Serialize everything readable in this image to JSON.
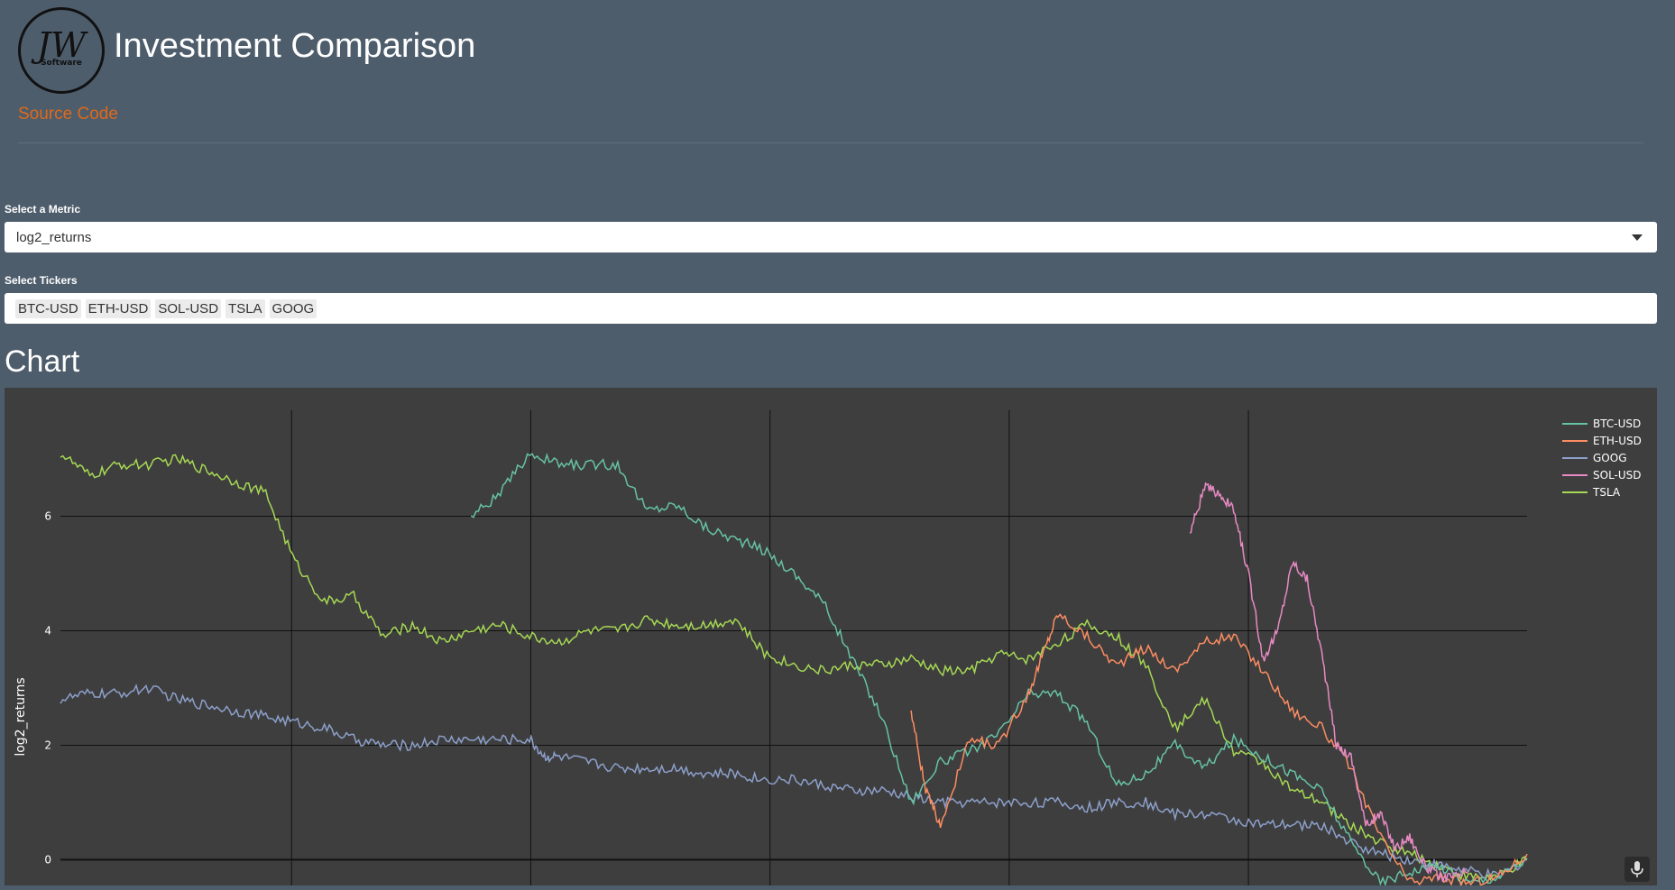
{
  "header": {
    "logo_mark": "JW",
    "logo_sub": "Software",
    "title": "Investment Comparison",
    "source_link": "Source Code"
  },
  "metric": {
    "label": "Select a Metric",
    "value": "log2_returns"
  },
  "tickers": {
    "label": "Select Tickers",
    "selected": [
      "BTC-USD",
      "ETH-USD",
      "SOL-USD",
      "TSLA",
      "GOOG"
    ]
  },
  "chart_heading": "Chart",
  "colors": {
    "page_bg": "#4e5d6c",
    "plot_bg": "#3e3e3e",
    "accent": "#df691a"
  },
  "icons": [
    "microphone-icon",
    "chevron-down-icon"
  ],
  "chart_data": {
    "type": "line",
    "title": "",
    "ylabel": "log2_returns",
    "xlabel": "",
    "ylim": [
      -0.45,
      7.85
    ],
    "yticks": [
      0,
      2,
      4,
      6
    ],
    "grid": true,
    "legend": "top-right",
    "series": [
      {
        "name": "BTC-USD",
        "color": "#66c2a5",
        "x": [
          0.28,
          0.3,
          0.32,
          0.34,
          0.36,
          0.38,
          0.4,
          0.42,
          0.44,
          0.46,
          0.48,
          0.5,
          0.52,
          0.54,
          0.56,
          0.58,
          0.6,
          0.62,
          0.64,
          0.66,
          0.68,
          0.7,
          0.72,
          0.74,
          0.76,
          0.78,
          0.8,
          0.82,
          0.84,
          0.86,
          0.88,
          0.9,
          0.92,
          0.94,
          0.96,
          0.98,
          1.0
        ],
        "y": [
          6.0,
          6.4,
          7.1,
          6.9,
          6.9,
          6.9,
          6.1,
          6.2,
          5.8,
          5.6,
          5.4,
          5.0,
          4.5,
          3.5,
          2.5,
          1.0,
          1.7,
          1.9,
          2.2,
          2.9,
          2.9,
          2.4,
          1.3,
          1.5,
          2.0,
          1.6,
          2.1,
          1.8,
          1.5,
          1.2,
          0.3,
          -0.4,
          -0.2,
          -0.1,
          -0.4,
          -0.3,
          0.0
        ]
      },
      {
        "name": "ETH-USD",
        "color": "#fc8d62",
        "x": [
          0.58,
          0.59,
          0.6,
          0.62,
          0.64,
          0.66,
          0.67,
          0.68,
          0.7,
          0.72,
          0.74,
          0.76,
          0.78,
          0.8,
          0.82,
          0.84,
          0.86,
          0.88,
          0.9,
          0.92,
          0.94,
          0.96,
          0.98,
          1.0
        ],
        "y": [
          2.6,
          1.2,
          0.6,
          2.1,
          2.0,
          2.9,
          3.6,
          4.3,
          3.9,
          3.4,
          3.7,
          3.3,
          3.8,
          3.9,
          3.3,
          2.6,
          2.3,
          1.6,
          0.4,
          -0.4,
          -0.3,
          -0.4,
          -0.3,
          0.1
        ]
      },
      {
        "name": "GOOG",
        "color": "#8da0cb",
        "x": [
          0.0,
          0.02,
          0.04,
          0.06,
          0.08,
          0.1,
          0.12,
          0.14,
          0.16,
          0.18,
          0.2,
          0.22,
          0.24,
          0.26,
          0.28,
          0.3,
          0.32,
          0.33,
          0.34,
          0.36,
          0.38,
          0.4,
          0.42,
          0.44,
          0.46,
          0.48,
          0.5,
          0.52,
          0.54,
          0.56,
          0.58,
          0.6,
          0.62,
          0.64,
          0.66,
          0.68,
          0.7,
          0.72,
          0.74,
          0.76,
          0.78,
          0.8,
          0.82,
          0.84,
          0.86,
          0.88,
          0.9,
          0.92,
          0.94,
          0.96,
          0.98,
          1.0
        ],
        "y": [
          2.8,
          2.9,
          2.9,
          3.0,
          2.8,
          2.7,
          2.6,
          2.5,
          2.4,
          2.3,
          2.1,
          2.0,
          2.0,
          2.1,
          2.1,
          2.1,
          2.1,
          1.8,
          1.8,
          1.7,
          1.6,
          1.6,
          1.6,
          1.5,
          1.5,
          1.4,
          1.4,
          1.3,
          1.2,
          1.2,
          1.1,
          1.0,
          1.0,
          1.0,
          1.0,
          1.0,
          0.9,
          1.0,
          1.0,
          0.8,
          0.8,
          0.7,
          0.6,
          0.6,
          0.6,
          0.3,
          0.1,
          0.0,
          -0.1,
          -0.2,
          -0.3,
          0.0
        ]
      },
      {
        "name": "SOL-USD",
        "color": "#e78ac3",
        "x": [
          0.77,
          0.78,
          0.79,
          0.8,
          0.81,
          0.82,
          0.83,
          0.84,
          0.85,
          0.86,
          0.87,
          0.88,
          0.89,
          0.9,
          0.91,
          0.92,
          0.93,
          0.94,
          0.95,
          0.96
        ],
        "y": [
          5.7,
          6.5,
          6.4,
          6.1,
          5.0,
          3.5,
          4.0,
          5.2,
          4.9,
          3.6,
          2.0,
          1.8,
          0.6,
          0.8,
          0.2,
          0.4,
          -0.1,
          -0.3,
          -0.3,
          -0.2
        ]
      },
      {
        "name": "TSLA",
        "color": "#a6d854",
        "x": [
          0.0,
          0.02,
          0.04,
          0.06,
          0.08,
          0.1,
          0.12,
          0.14,
          0.16,
          0.18,
          0.2,
          0.22,
          0.24,
          0.26,
          0.28,
          0.3,
          0.32,
          0.34,
          0.36,
          0.38,
          0.4,
          0.42,
          0.44,
          0.46,
          0.48,
          0.5,
          0.52,
          0.54,
          0.56,
          0.58,
          0.6,
          0.62,
          0.64,
          0.66,
          0.68,
          0.7,
          0.72,
          0.74,
          0.76,
          0.78,
          0.8,
          0.82,
          0.84,
          0.86,
          0.88,
          0.9,
          0.92,
          0.94,
          0.96,
          0.98,
          1.0
        ],
        "y": [
          7.1,
          6.7,
          6.9,
          6.9,
          7.0,
          6.8,
          6.6,
          6.4,
          5.2,
          4.5,
          4.6,
          3.9,
          4.1,
          3.8,
          4.0,
          4.1,
          3.9,
          3.8,
          4.0,
          4.0,
          4.2,
          4.1,
          4.1,
          4.2,
          3.6,
          3.4,
          3.3,
          3.4,
          3.4,
          3.5,
          3.3,
          3.3,
          3.6,
          3.5,
          3.8,
          4.1,
          3.9,
          3.4,
          2.3,
          2.8,
          1.9,
          1.7,
          1.2,
          1.0,
          0.6,
          0.3,
          0.1,
          -0.1,
          -0.3,
          -0.3,
          0.0
        ]
      }
    ]
  }
}
